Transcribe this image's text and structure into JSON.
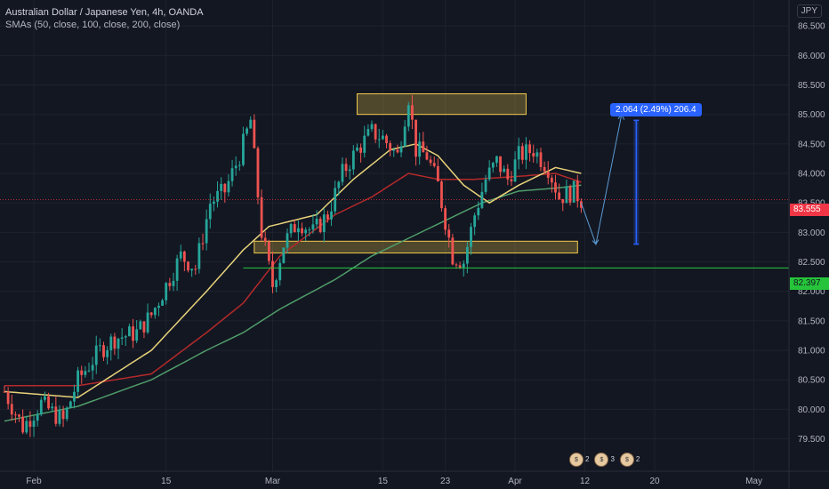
{
  "header": {
    "title": "Australian Dollar / Japanese Yen, 4h, OANDA",
    "indicator": "SMAs (50, close, 100, close, 200, close)",
    "currency": "JPY"
  },
  "badges": {
    "current_price": "83.555",
    "line_price": "82.397"
  },
  "measure_label": "2.064 (2.49%) 206.4",
  "events": {
    "count_a": "2",
    "count_b": "3",
    "count_c": "2"
  },
  "colors": {
    "up": "#26a69a",
    "down": "#ef5350",
    "sma50": "#e8d37a",
    "sma100": "#b52a2a",
    "sma200": "#4f9d69",
    "zone": "#f2c94c",
    "hline": "#27c93f",
    "measure": "#2962ff"
  },
  "chart_data": {
    "type": "candlestick",
    "symbol": "AUDJPY",
    "timeframe": "4h",
    "ylim": [
      79.4,
      86.8
    ],
    "y_ticks": [
      "79.500",
      "80.000",
      "80.500",
      "81.000",
      "81.500",
      "82.000",
      "82.500",
      "83.000",
      "83.500",
      "84.000",
      "84.500",
      "85.000",
      "85.500",
      "86.000",
      "86.500"
    ],
    "x_ticks": [
      "Feb",
      "15",
      "Mar",
      "15",
      "23",
      "Apr",
      "12",
      "20",
      "May"
    ],
    "x_tick_bars": [
      8,
      44,
      73,
      103,
      120,
      139,
      158,
      177,
      204
    ],
    "num_bars": 214,
    "price_path_keypoints": [
      [
        0,
        80.3
      ],
      [
        5,
        79.7
      ],
      [
        10,
        80.1
      ],
      [
        16,
        79.8
      ],
      [
        20,
        80.5
      ],
      [
        26,
        81.0
      ],
      [
        30,
        81.2
      ],
      [
        36,
        81.3
      ],
      [
        40,
        81.6
      ],
      [
        44,
        82.1
      ],
      [
        48,
        82.6
      ],
      [
        52,
        82.4
      ],
      [
        56,
        83.5
      ],
      [
        60,
        83.7
      ],
      [
        64,
        84.3
      ],
      [
        67,
        84.9
      ],
      [
        70,
        83.0
      ],
      [
        73,
        82.1
      ],
      [
        76,
        82.8
      ],
      [
        80,
        83.2
      ],
      [
        84,
        83.0
      ],
      [
        88,
        83.3
      ],
      [
        92,
        84.0
      ],
      [
        96,
        84.4
      ],
      [
        100,
        84.7
      ],
      [
        103,
        84.6
      ],
      [
        107,
        84.3
      ],
      [
        110,
        85.3
      ],
      [
        112,
        84.4
      ],
      [
        115,
        84.3
      ],
      [
        118,
        83.8
      ],
      [
        122,
        82.6
      ],
      [
        125,
        82.5
      ],
      [
        128,
        83.3
      ],
      [
        131,
        83.9
      ],
      [
        134,
        84.2
      ],
      [
        137,
        83.9
      ],
      [
        140,
        84.3
      ],
      [
        144,
        84.4
      ],
      [
        148,
        84.1
      ],
      [
        151,
        83.6
      ],
      [
        155,
        83.7
      ],
      [
        157,
        83.55
      ]
    ],
    "sma_keypoints": {
      "50": [
        [
          0,
          80.3
        ],
        [
          20,
          80.2
        ],
        [
          40,
          81.0
        ],
        [
          55,
          82.0
        ],
        [
          65,
          82.7
        ],
        [
          72,
          83.1
        ],
        [
          85,
          83.3
        ],
        [
          95,
          83.9
        ],
        [
          105,
          84.4
        ],
        [
          112,
          84.5
        ],
        [
          118,
          84.3
        ],
        [
          125,
          83.8
        ],
        [
          132,
          83.5
        ],
        [
          140,
          83.8
        ],
        [
          150,
          84.1
        ],
        [
          157,
          84.0
        ]
      ],
      "100": [
        [
          0,
          80.4
        ],
        [
          20,
          80.4
        ],
        [
          40,
          80.6
        ],
        [
          55,
          81.3
        ],
        [
          65,
          81.8
        ],
        [
          75,
          82.6
        ],
        [
          90,
          83.3
        ],
        [
          100,
          83.6
        ],
        [
          110,
          84.0
        ],
        [
          118,
          83.9
        ],
        [
          128,
          83.9
        ],
        [
          140,
          83.95
        ],
        [
          150,
          84.0
        ],
        [
          157,
          83.85
        ]
      ],
      "200": [
        [
          0,
          79.8
        ],
        [
          20,
          80.05
        ],
        [
          40,
          80.5
        ],
        [
          55,
          81.0
        ],
        [
          65,
          81.3
        ],
        [
          75,
          81.7
        ],
        [
          90,
          82.2
        ],
        [
          100,
          82.6
        ],
        [
          110,
          82.9
        ],
        [
          120,
          83.2
        ],
        [
          130,
          83.5
        ],
        [
          140,
          83.7
        ],
        [
          150,
          83.75
        ],
        [
          157,
          83.8
        ]
      ]
    },
    "resistance_zone": {
      "from_bar": 96,
      "to_bar": 142,
      "price_low": 85.0,
      "price_high": 85.35
    },
    "support_zone": {
      "from_bar": 68,
      "to_bar": 156,
      "price_low": 82.65,
      "price_high": 82.85
    },
    "horizontal_line": {
      "price": 82.397
    },
    "current_price": 83.555,
    "projection_path": [
      [
        157,
        83.5
      ],
      [
        161,
        82.8
      ],
      [
        168,
        85.0
      ]
    ],
    "measure": {
      "bar": 172,
      "from_price": 82.8,
      "to_price": 84.9,
      "change": "2.064 (2.49%) 206.4"
    }
  }
}
